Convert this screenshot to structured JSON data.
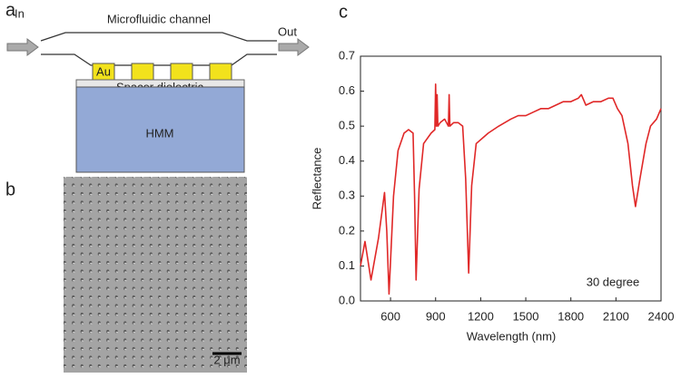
{
  "panels": {
    "a": "a",
    "b": "b",
    "c": "c"
  },
  "diagram": {
    "inlet": "In",
    "outlet": "Out",
    "channel": "Microfluidic channel",
    "metal": "Au",
    "spacer": "Spacer dielectric",
    "substrate": "HMM"
  },
  "micrograph": {
    "scale_bar": "2 μm"
  },
  "chart_data": {
    "type": "line",
    "x_label": "Wavelength (nm)",
    "y_label": "Reflectance",
    "annotation": "30 degree",
    "color": "#e02828",
    "x": [
      400,
      430,
      470,
      520,
      560,
      575,
      590,
      620,
      650,
      690,
      720,
      750,
      760,
      770,
      790,
      820,
      870,
      895,
      900,
      905,
      910,
      915,
      930,
      960,
      985,
      990,
      995,
      1020,
      1050,
      1080,
      1100,
      1120,
      1140,
      1170,
      1250,
      1320,
      1400,
      1450,
      1500,
      1550,
      1600,
      1650,
      1700,
      1750,
      1800,
      1850,
      1870,
      1900,
      1950,
      2000,
      2050,
      2080,
      2110,
      2140,
      2180,
      2210,
      2230,
      2260,
      2300,
      2330,
      2370,
      2400
    ],
    "values": [
      0.1,
      0.17,
      0.06,
      0.18,
      0.31,
      0.2,
      0.02,
      0.3,
      0.43,
      0.48,
      0.49,
      0.48,
      0.3,
      0.06,
      0.32,
      0.45,
      0.48,
      0.49,
      0.62,
      0.5,
      0.59,
      0.5,
      0.51,
      0.52,
      0.5,
      0.59,
      0.5,
      0.51,
      0.51,
      0.5,
      0.35,
      0.08,
      0.33,
      0.45,
      0.48,
      0.5,
      0.52,
      0.53,
      0.53,
      0.54,
      0.55,
      0.55,
      0.56,
      0.57,
      0.57,
      0.58,
      0.59,
      0.56,
      0.57,
      0.57,
      0.58,
      0.58,
      0.55,
      0.53,
      0.45,
      0.33,
      0.27,
      0.35,
      0.45,
      0.5,
      0.52,
      0.55
    ],
    "xlim": [
      400,
      2400
    ],
    "xticks": [
      600,
      900,
      1200,
      1500,
      1800,
      2100,
      2400
    ],
    "ylim": [
      0,
      0.7
    ],
    "yticks": [
      {
        "value": 0,
        "label": "0.0"
      },
      0.1,
      0.2,
      0.3,
      0.4,
      0.5,
      0.6,
      0.7
    ]
  }
}
